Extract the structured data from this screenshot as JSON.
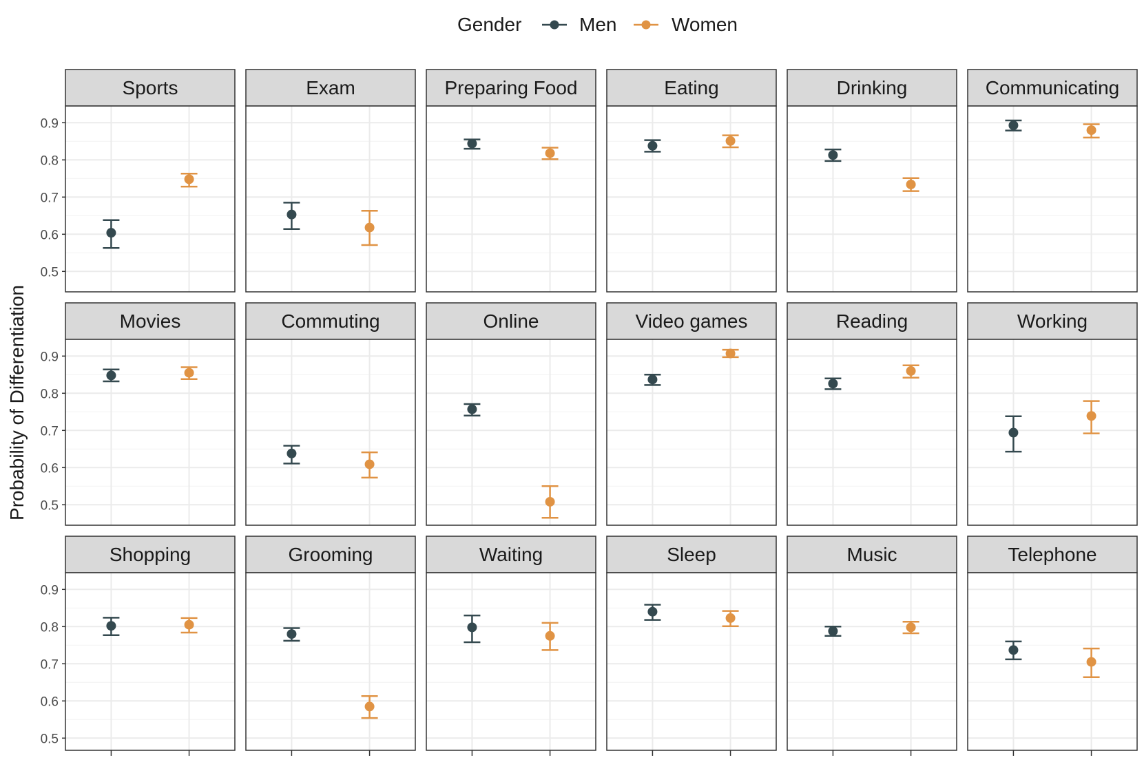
{
  "legend": {
    "title": "Gender",
    "entries": [
      {
        "label": "Men",
        "color": "#34494f"
      },
      {
        "label": "Women",
        "color": "#e09344"
      }
    ]
  },
  "axes": {
    "ylabel": "Probability of Differentiation",
    "yticks": [
      "0.5",
      "0.6",
      "0.7",
      "0.8",
      "0.9"
    ]
  },
  "chart_data": {
    "type": "scatter",
    "subtype": "point-errorbar faceted",
    "ylim": [
      0.445,
      0.945
    ],
    "grid": true,
    "legend_position": "top",
    "groups": [
      "Men",
      "Women"
    ],
    "panels": [
      {
        "title": "Sports",
        "Men": {
          "y": 0.604,
          "low": 0.563,
          "high": 0.638
        },
        "Women": {
          "y": 0.748,
          "low": 0.728,
          "high": 0.763
        }
      },
      {
        "title": "Exam",
        "Men": {
          "y": 0.653,
          "low": 0.614,
          "high": 0.685
        },
        "Women": {
          "y": 0.618,
          "low": 0.571,
          "high": 0.663
        }
      },
      {
        "title": "Preparing Food",
        "Men": {
          "y": 0.844,
          "low": 0.83,
          "high": 0.855
        },
        "Women": {
          "y": 0.818,
          "low": 0.802,
          "high": 0.833
        }
      },
      {
        "title": "Eating",
        "Men": {
          "y": 0.838,
          "low": 0.822,
          "high": 0.853
        },
        "Women": {
          "y": 0.851,
          "low": 0.834,
          "high": 0.866
        }
      },
      {
        "title": "Drinking",
        "Men": {
          "y": 0.813,
          "low": 0.797,
          "high": 0.828
        },
        "Women": {
          "y": 0.734,
          "low": 0.716,
          "high": 0.751
        }
      },
      {
        "title": "Communicating",
        "Men": {
          "y": 0.893,
          "low": 0.879,
          "high": 0.906
        },
        "Women": {
          "y": 0.88,
          "low": 0.86,
          "high": 0.896
        }
      },
      {
        "title": "Movies",
        "Men": {
          "y": 0.848,
          "low": 0.832,
          "high": 0.864
        },
        "Women": {
          "y": 0.855,
          "low": 0.838,
          "high": 0.87
        }
      },
      {
        "title": "Commuting",
        "Men": {
          "y": 0.638,
          "low": 0.611,
          "high": 0.659
        },
        "Women": {
          "y": 0.609,
          "low": 0.573,
          "high": 0.641
        }
      },
      {
        "title": "Online",
        "Men": {
          "y": 0.757,
          "low": 0.74,
          "high": 0.771
        },
        "Women": {
          "y": 0.508,
          "low": 0.465,
          "high": 0.55
        }
      },
      {
        "title": "Video games",
        "Men": {
          "y": 0.837,
          "low": 0.822,
          "high": 0.85
        },
        "Women": {
          "y": 0.907,
          "low": 0.897,
          "high": 0.917
        }
      },
      {
        "title": "Reading",
        "Men": {
          "y": 0.826,
          "low": 0.811,
          "high": 0.84
        },
        "Women": {
          "y": 0.86,
          "low": 0.842,
          "high": 0.875
        }
      },
      {
        "title": "Working",
        "Men": {
          "y": 0.694,
          "low": 0.643,
          "high": 0.738
        },
        "Women": {
          "y": 0.739,
          "low": 0.692,
          "high": 0.779
        }
      },
      {
        "title": "Shopping",
        "Men": {
          "y": 0.802,
          "low": 0.777,
          "high": 0.824
        },
        "Women": {
          "y": 0.805,
          "low": 0.784,
          "high": 0.823
        }
      },
      {
        "title": "Grooming",
        "Men": {
          "y": 0.78,
          "low": 0.762,
          "high": 0.796
        },
        "Women": {
          "y": 0.585,
          "low": 0.554,
          "high": 0.613
        }
      },
      {
        "title": "Waiting",
        "Men": {
          "y": 0.798,
          "low": 0.758,
          "high": 0.83
        },
        "Women": {
          "y": 0.775,
          "low": 0.737,
          "high": 0.81
        }
      },
      {
        "title": "Sleep",
        "Men": {
          "y": 0.84,
          "low": 0.818,
          "high": 0.859
        },
        "Women": {
          "y": 0.823,
          "low": 0.801,
          "high": 0.842
        }
      },
      {
        "title": "Music",
        "Men": {
          "y": 0.788,
          "low": 0.775,
          "high": 0.8
        },
        "Women": {
          "y": 0.798,
          "low": 0.782,
          "high": 0.813
        }
      },
      {
        "title": "Telephone",
        "Men": {
          "y": 0.737,
          "low": 0.712,
          "high": 0.76
        },
        "Women": {
          "y": 0.705,
          "low": 0.664,
          "high": 0.741
        }
      }
    ]
  }
}
